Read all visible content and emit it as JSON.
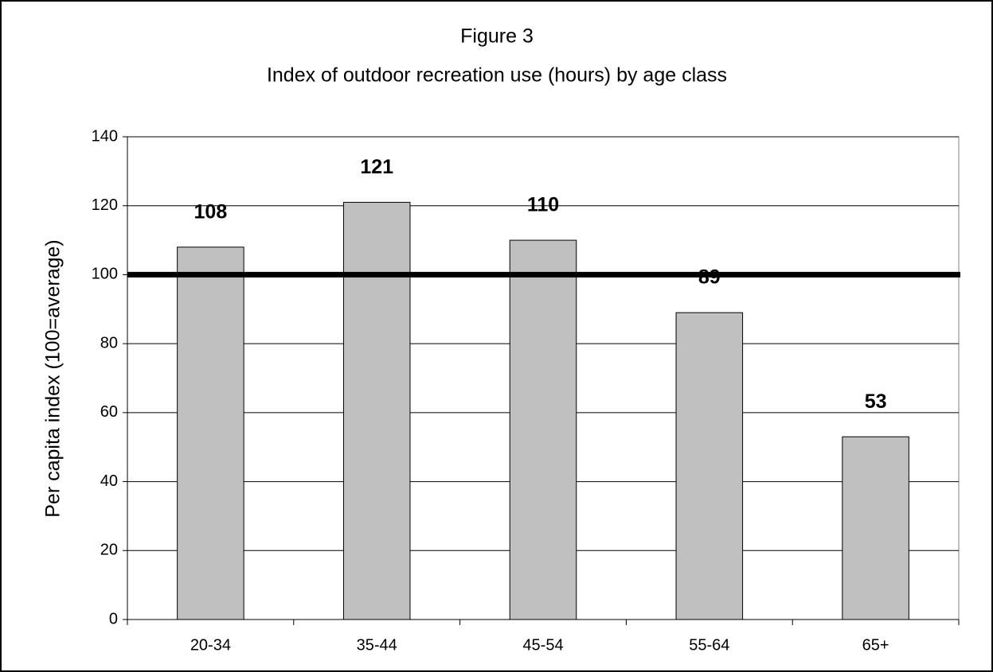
{
  "chart_data": {
    "type": "bar",
    "title": "Figure 3",
    "subtitle": "Index of outdoor recreation use (hours) by age class",
    "y_label": "Per capita index (100=average)",
    "categories": [
      "20-34",
      "35-44",
      "45-54",
      "55-64",
      "65+"
    ],
    "values": [
      108,
      121,
      110,
      89,
      53
    ],
    "color": "#c0c0c0",
    "ylim": [
      0,
      140
    ],
    "yticks": [
      0,
      20,
      40,
      60,
      80,
      100,
      120,
      140
    ],
    "grid": true,
    "reference_line": 100
  }
}
